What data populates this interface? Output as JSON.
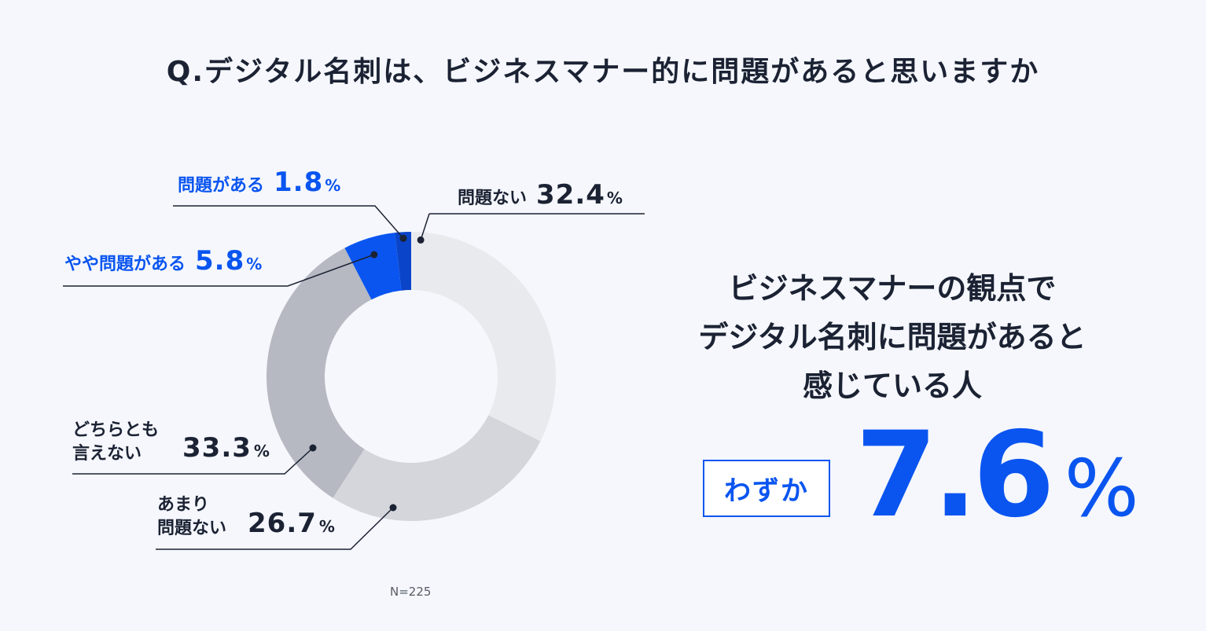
{
  "title": "Q.デジタル名刺は、ビジネスマナー的に問題があると思いますか",
  "chart_data": {
    "type": "pie",
    "donut": true,
    "slices": [
      {
        "label": "問題ない",
        "value": 32.4,
        "color": "#e9eaee"
      },
      {
        "label": "あまり問題ない",
        "value": 26.7,
        "color": "#d4d6dc"
      },
      {
        "label": "どちらとも言えない",
        "value": 33.3,
        "color": "#b6b9c2"
      },
      {
        "label": "やや問題がある",
        "value": 5.8,
        "color": "#0a55f0"
      },
      {
        "label": "問題がある",
        "value": 1.8,
        "color": "#0a44c8"
      }
    ],
    "unit": "%"
  },
  "labels": {
    "mondai_aru": {
      "name": "問題がある",
      "value": "1.8",
      "pct": "%"
    },
    "yaya": {
      "name": "やや問題がある",
      "value": "5.8",
      "pct": "%"
    },
    "mondai_nai": {
      "name": "問題ない",
      "value": "32.4",
      "pct": "%"
    },
    "dochira_line1": "どちらとも",
    "dochira_line2": "言えない",
    "dochira_value": "33.3",
    "amari_line1": "あまり",
    "amari_line2": "問題ない",
    "amari_value": "26.7",
    "pct": "%"
  },
  "n_label": "N=225",
  "headline": {
    "line1": "ビジネスマナーの観点で",
    "line2": "デジタル名刺に問題があると",
    "line3": "感じている人"
  },
  "badge": "わずか",
  "highlight": {
    "value": "7.6",
    "pct": "%"
  }
}
